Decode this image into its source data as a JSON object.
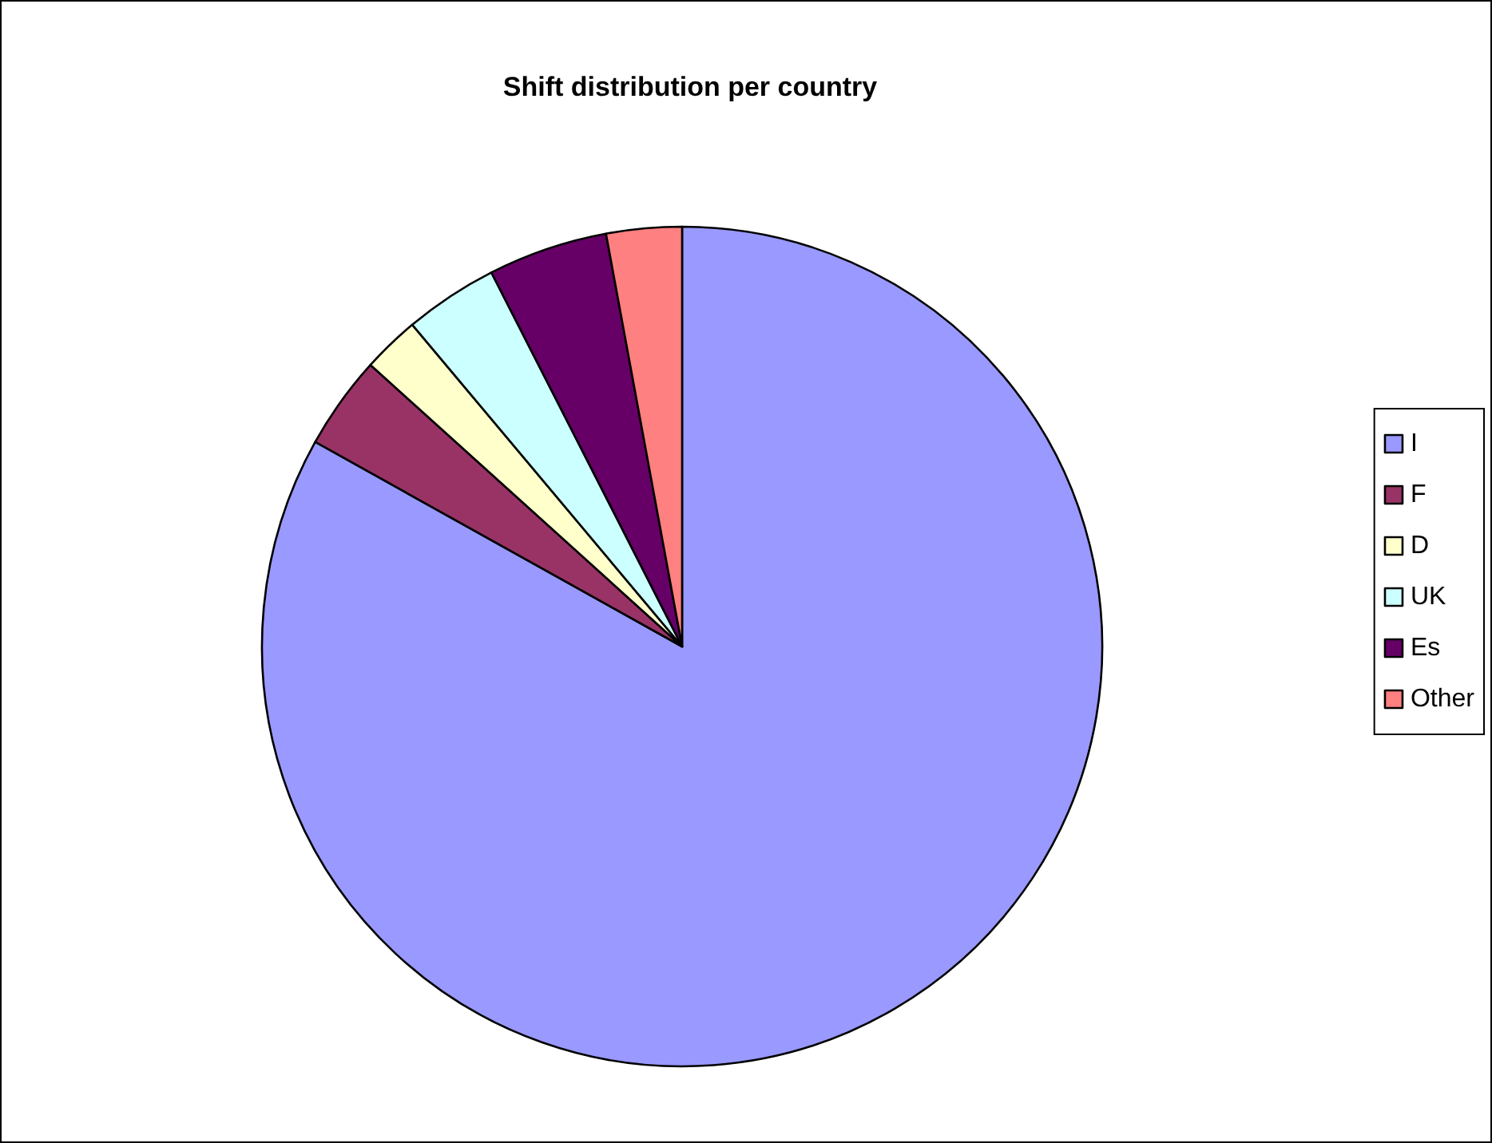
{
  "chart_data": {
    "type": "pie",
    "title": "Shift distribution per country",
    "categories": [
      "I",
      "F",
      "D",
      "UK",
      "Es",
      "Other"
    ],
    "values": [
      83.1,
      3.6,
      2.2,
      3.6,
      4.6,
      2.9
    ],
    "colors": [
      "#9999ff",
      "#993366",
      "#ffffcc",
      "#ccffff",
      "#660066",
      "#ff8080"
    ],
    "legend": "right"
  }
}
